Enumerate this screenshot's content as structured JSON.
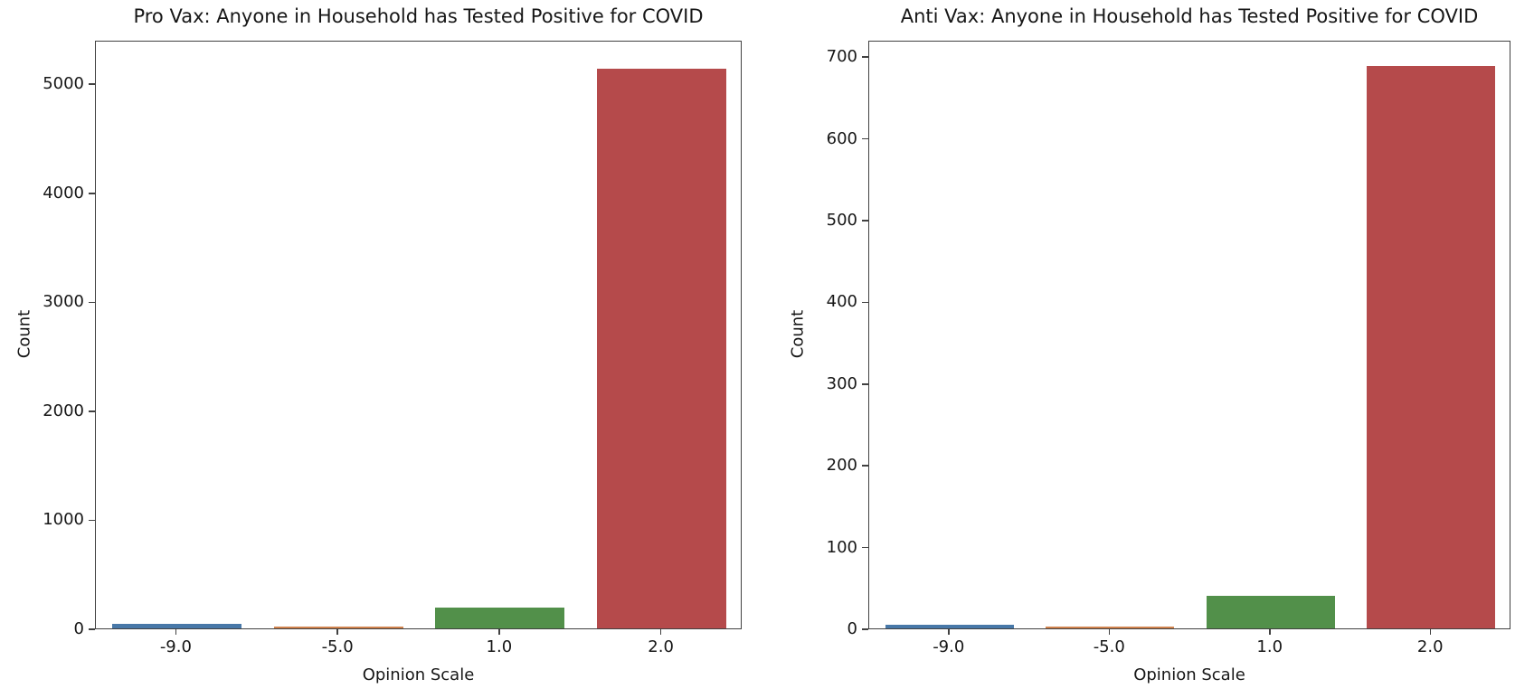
{
  "figure": {
    "background": "#ffffff",
    "text_color": "#171717",
    "spine_color": "#414141"
  },
  "chart_data": [
    {
      "type": "bar",
      "title": "Pro Vax: Anyone in Household has Tested Positive for COVID",
      "xlabel": "Opinion Scale",
      "ylabel": "Count",
      "categories": [
        "-9.0",
        "-5.0",
        "1.0",
        "2.0"
      ],
      "values": [
        40,
        18,
        190,
        5150
      ],
      "bar_colors": [
        "#4878A8",
        "#D0834E",
        "#52904A",
        "#B54A4B"
      ],
      "yticks": [
        0,
        1000,
        2000,
        3000,
        4000,
        5000
      ],
      "ylim": [
        0,
        5400
      ],
      "grid": false,
      "legend": "none"
    },
    {
      "type": "bar",
      "title": "Anti Vax: Anyone in Household has Tested Positive for COVID",
      "xlabel": "Opinion Scale",
      "ylabel": "Count",
      "categories": [
        "-9.0",
        "-5.0",
        "1.0",
        "2.0"
      ],
      "values": [
        5,
        2,
        40,
        690
      ],
      "bar_colors": [
        "#4878A8",
        "#D0834E",
        "#52904A",
        "#B54A4B"
      ],
      "yticks": [
        0,
        100,
        200,
        300,
        400,
        500,
        600,
        700
      ],
      "ylim": [
        0,
        720
      ],
      "grid": false,
      "legend": "none"
    }
  ]
}
